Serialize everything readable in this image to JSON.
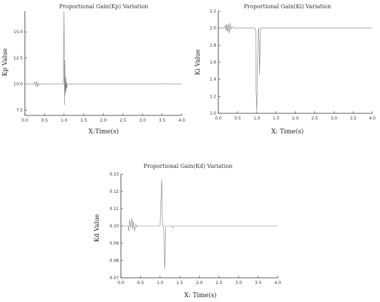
{
  "chart_data": [
    {
      "id": "kp",
      "type": "line",
      "title": "Proportional Gain(Kp) Variation",
      "xlabel": "X:Time(s)",
      "ylabel": "Kp Value",
      "xlim": [
        0,
        4.0
      ],
      "ylim": [
        7.0,
        17.0
      ],
      "xticks": [
        "0.0",
        "0.5",
        "1.0",
        "1.5",
        "2.0",
        "2.5",
        "3.0",
        "3.5",
        "4.0"
      ],
      "yticks": [
        "7.5",
        "10.0",
        "12.5",
        "15.0"
      ],
      "x": [
        0,
        0.22,
        0.25,
        0.28,
        0.3,
        0.32,
        0.35,
        0.38,
        0.4,
        0.45,
        0.98,
        1.0,
        1.01,
        1.02,
        1.03,
        1.04,
        1.05,
        1.06,
        1.07,
        1.08,
        1.1,
        1.15,
        1.2,
        2.0,
        3.0,
        3.5,
        3.52,
        4.0
      ],
      "y": [
        10.0,
        10.0,
        10.2,
        9.8,
        10.3,
        9.7,
        10.1,
        9.9,
        10.0,
        10.0,
        10.0,
        17.0,
        8.0,
        12.3,
        9.0,
        10.7,
        9.3,
        10.2,
        9.6,
        10.0,
        10.0,
        10.0,
        10.0,
        10.0,
        10.0,
        10.0,
        10.05,
        10.0
      ]
    },
    {
      "id": "ki",
      "type": "line",
      "title": "Proportional Gain(Ki) Variation",
      "xlabel": "X: Time(s)",
      "ylabel": "Ki Value",
      "xlim": [
        0,
        4.0
      ],
      "ylim": [
        1.0,
        2.2
      ],
      "xticks": [
        "0.0",
        "0.5",
        "1.0",
        "1.5",
        "2.0",
        "2.5",
        "3.0",
        "3.5",
        "4.0"
      ],
      "yticks": [
        "1.0",
        "1.2",
        "1.4",
        "1.6",
        "1.8",
        "2.0",
        "2.2"
      ],
      "x": [
        0,
        0.15,
        0.18,
        0.2,
        0.22,
        0.24,
        0.26,
        0.28,
        0.3,
        0.32,
        0.35,
        0.4,
        0.45,
        0.9,
        0.95,
        0.97,
        0.98,
        1.0,
        1.02,
        1.04,
        1.05,
        1.06,
        1.07,
        1.08,
        1.1,
        1.15,
        2.0,
        2.9,
        2.92,
        2.94,
        4.0
      ],
      "y": [
        2.0,
        2.0,
        2.03,
        1.97,
        2.05,
        1.96,
        2.04,
        1.94,
        2.06,
        1.98,
        2.02,
        2.0,
        2.0,
        2.0,
        2.0,
        1.97,
        1.3,
        1.03,
        1.6,
        1.98,
        2.0,
        1.8,
        1.45,
        1.7,
        2.0,
        2.0,
        2.0,
        2.0,
        2.01,
        2.0,
        2.0
      ]
    },
    {
      "id": "kd",
      "type": "line",
      "title": "Proportional Gain(Kd) Variation",
      "xlabel": "X: Time(s)",
      "ylabel": "Kd Value",
      "xlim": [
        0,
        4.0
      ],
      "ylim": [
        0.07,
        0.13
      ],
      "xticks": [
        "0.0",
        "0.5",
        "1.0",
        "1.5",
        "2.0",
        "2.5",
        "3.0",
        "3.5",
        "4.0"
      ],
      "yticks": [
        "0.07",
        "0.08",
        "0.09",
        "0.10",
        "0.11",
        "0.12",
        "0.13"
      ],
      "x": [
        0,
        0.18,
        0.2,
        0.22,
        0.25,
        0.28,
        0.3,
        0.32,
        0.35,
        0.38,
        0.4,
        0.42,
        0.45,
        0.5,
        1.0,
        1.04,
        1.06,
        1.08,
        1.1,
        1.12,
        1.14,
        1.2,
        1.3,
        1.32,
        1.34,
        1.4,
        2.0,
        4.0
      ],
      "y": [
        0.1,
        0.1,
        0.097,
        0.1035,
        0.099,
        0.1045,
        0.098,
        0.1025,
        0.097,
        0.101,
        0.0995,
        0.1,
        0.1,
        0.1,
        0.1,
        0.127,
        0.1,
        0.1,
        0.094,
        0.075,
        0.1,
        0.1,
        0.1,
        0.099,
        0.1,
        0.1,
        0.1,
        0.1
      ]
    }
  ]
}
